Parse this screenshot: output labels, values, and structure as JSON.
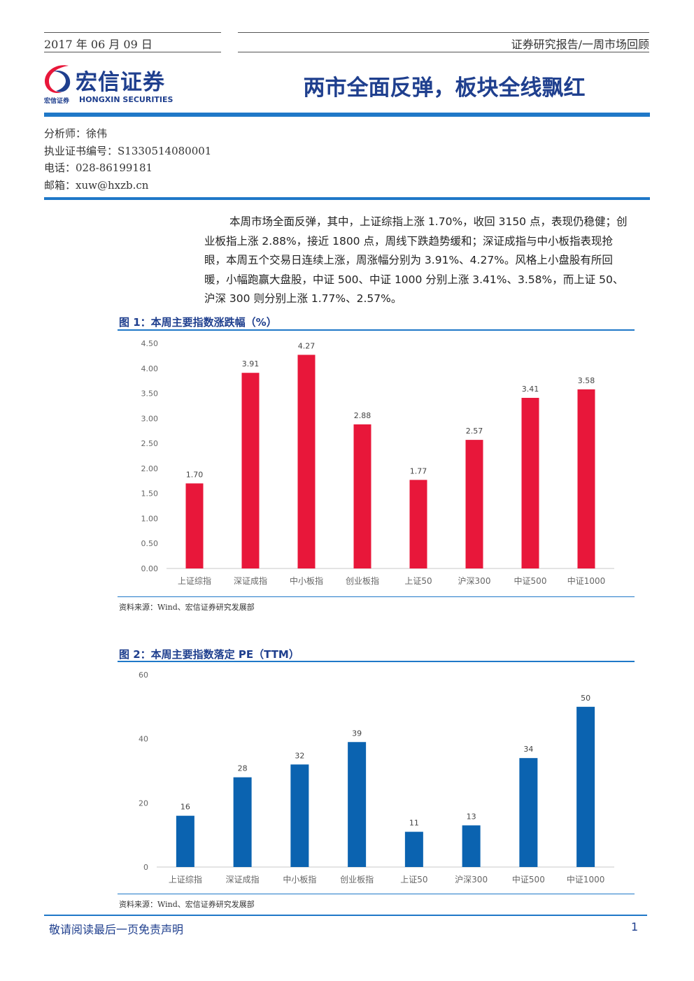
{
  "header": {
    "date": "2017 年 06 月 09 日",
    "report_type": "证券研究报告/一周市场回顾"
  },
  "logo": {
    "name_cn": "宏信证券",
    "name_en": "HONGXIN SECURITIES",
    "small_cn": "宏信证券"
  },
  "title": "两市全面反弹，板块全线飘红",
  "analyst": {
    "name": "分析师：徐伟",
    "license": "执业证书编号：S1330514080001",
    "phone": "电话：028-86199181",
    "email": "邮箱：xuw@hxzb.cn"
  },
  "summary": "本周市场全面反弹，其中，上证综指上涨 1.70%，收回 3150 点，表现仍稳健；创业板指上涨 2.88%，接近 1800 点，周线下跌趋势缓和；深证成指与中小板指表现抢眼，本周五个交易日连续上涨，周涨幅分别为 3.91%、4.27%。风格上小盘股有所回暖，小幅跑赢大盘股，中证 500、中证 1000 分别上涨 3.41%、3.58%，而上证 50、沪深 300 则分别上涨 1.77%、2.57%。",
  "figure1": {
    "title": "图 1：本周主要指数涨跌幅（%）",
    "source": "资料来源：Wind、宏信证券研究发展部"
  },
  "figure2": {
    "title": "图 2：本周主要指数落定 PE（TTM）",
    "source": "资料来源：Wind、宏信证券研究发展部"
  },
  "chart_data": [
    {
      "type": "bar",
      "categories": [
        "上证综指",
        "深证成指",
        "中小板指",
        "创业板指",
        "上证50",
        "沪深300",
        "中证500",
        "中证1000"
      ],
      "values": [
        1.7,
        3.91,
        4.27,
        2.88,
        1.77,
        2.57,
        3.41,
        3.58
      ],
      "value_labels": [
        "1.70",
        "3.91",
        "4.27",
        "2.88",
        "1.77",
        "2.57",
        "3.41",
        "3.58"
      ],
      "yticks": [
        "0.00",
        "0.50",
        "1.00",
        "1.50",
        "2.00",
        "2.50",
        "3.00",
        "3.50",
        "4.00",
        "4.50"
      ],
      "ylim": [
        0,
        4.5
      ],
      "color": "#e8173a",
      "grid": false
    },
    {
      "type": "bar",
      "categories": [
        "上证综指",
        "深证成指",
        "中小板指",
        "创业板指",
        "上证50",
        "沪深300",
        "中证500",
        "中证1000"
      ],
      "values": [
        16,
        28,
        32,
        39,
        11,
        13,
        34,
        50
      ],
      "value_labels": [
        "16",
        "28",
        "32",
        "39",
        "11",
        "13",
        "34",
        "50"
      ],
      "yticks": [
        "0",
        "20",
        "40",
        "60"
      ],
      "ylim": [
        0,
        60
      ],
      "color": "#0b63b0",
      "grid": false
    }
  ],
  "footer": {
    "disclaimer": "敬请阅读最后一页免责声明",
    "page": "1"
  }
}
